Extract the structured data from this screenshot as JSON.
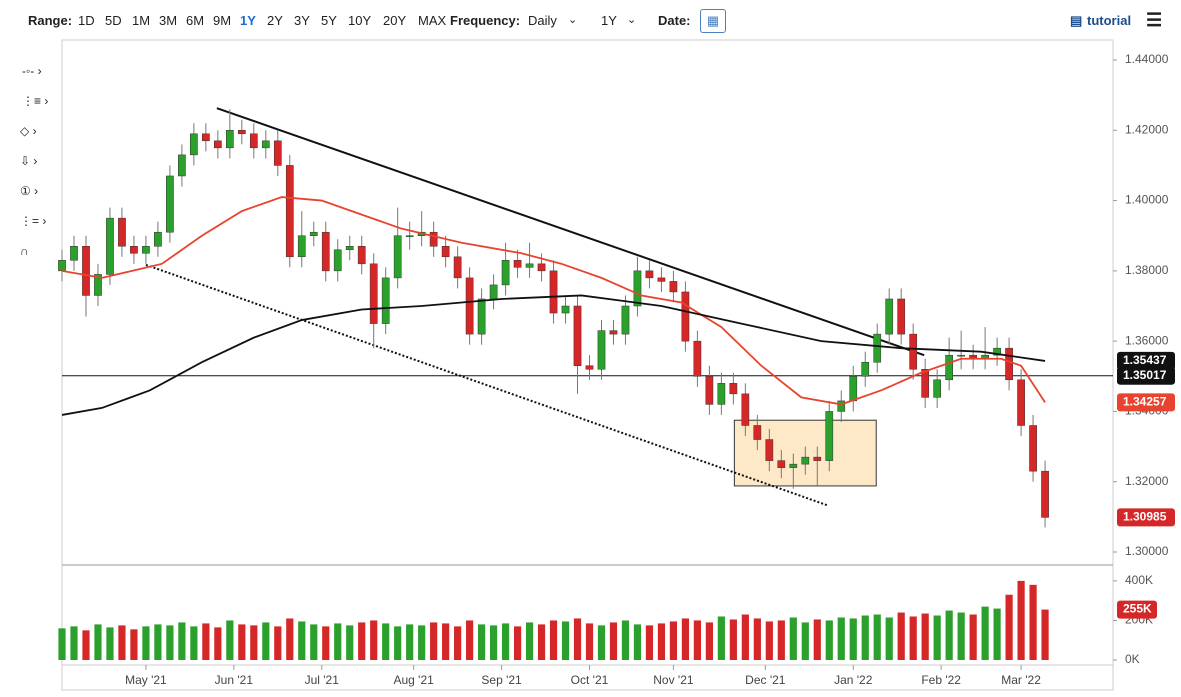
{
  "toolbar": {
    "range_label": "Range:",
    "ranges": [
      "1D",
      "5D",
      "1M",
      "3M",
      "6M",
      "9M",
      "1Y",
      "2Y",
      "3Y",
      "5Y",
      "10Y",
      "20Y",
      "MAX"
    ],
    "active_range": 6,
    "frequency_label": "Frequency:",
    "frequency": "Daily",
    "period": "1Y",
    "date_label": "Date:",
    "tutorial": "tutorial"
  },
  "chart_data": {
    "type": "candlestick",
    "xlim": [
      0,
      263
    ],
    "xticks": [
      {
        "value": 21,
        "label": "May '21"
      },
      {
        "value": 43,
        "label": "Jun '21"
      },
      {
        "value": 65,
        "label": "Jul '21"
      },
      {
        "value": 88,
        "label": "Aug '21"
      },
      {
        "value": 110,
        "label": "Sep '21"
      },
      {
        "value": 132,
        "label": "Oct '21"
      },
      {
        "value": 153,
        "label": "Nov '21"
      },
      {
        "value": 176,
        "label": "Dec '21"
      },
      {
        "value": 198,
        "label": "Jan '22"
      },
      {
        "value": 220,
        "label": "Feb '22"
      },
      {
        "value": 240,
        "label": "Mar '22"
      }
    ],
    "ylim": [
      1.3,
      1.44
    ],
    "yticks": [
      {
        "value": 1.3,
        "label": "1.30000"
      },
      {
        "value": 1.32,
        "label": "1.32000"
      },
      {
        "value": 1.34,
        "label": "1.34000"
      },
      {
        "value": 1.36,
        "label": "1.36000"
      },
      {
        "value": 1.38,
        "label": "1.38000"
      },
      {
        "value": 1.4,
        "label": "1.40000"
      },
      {
        "value": 1.42,
        "label": "1.42000"
      },
      {
        "value": 1.44,
        "label": "1.44000"
      }
    ],
    "up_color": "#2ca02c",
    "down_color": "#d62728",
    "x": [
      0,
      3,
      6,
      9,
      12,
      15,
      18,
      21,
      24,
      27,
      30,
      33,
      36,
      39,
      42,
      45,
      48,
      51,
      54,
      57,
      60,
      63,
      66,
      69,
      72,
      75,
      78,
      81,
      84,
      87,
      90,
      93,
      96,
      99,
      102,
      105,
      108,
      111,
      114,
      117,
      120,
      123,
      126,
      129,
      132,
      135,
      138,
      141,
      144,
      147,
      150,
      153,
      156,
      159,
      162,
      165,
      168,
      171,
      174,
      177,
      180,
      183,
      186,
      189,
      192,
      195,
      198,
      201,
      204,
      207,
      210,
      213,
      216,
      219,
      222,
      225,
      228,
      231,
      234,
      237,
      240,
      243,
      246
    ],
    "open": [
      1.38,
      1.383,
      1.387,
      1.373,
      1.379,
      1.395,
      1.387,
      1.385,
      1.387,
      1.391,
      1.407,
      1.413,
      1.419,
      1.417,
      1.415,
      1.42,
      1.419,
      1.415,
      1.417,
      1.41,
      1.384,
      1.39,
      1.391,
      1.38,
      1.386,
      1.387,
      1.382,
      1.365,
      1.378,
      1.39,
      1.39,
      1.391,
      1.387,
      1.384,
      1.378,
      1.362,
      1.372,
      1.376,
      1.383,
      1.381,
      1.382,
      1.38,
      1.368,
      1.37,
      1.353,
      1.352,
      1.363,
      1.362,
      1.37,
      1.38,
      1.378,
      1.377,
      1.374,
      1.36,
      1.35,
      1.342,
      1.348,
      1.345,
      1.336,
      1.332,
      1.326,
      1.324,
      1.325,
      1.327,
      1.326,
      1.34,
      1.343,
      1.35,
      1.354,
      1.362,
      1.372,
      1.362,
      1.352,
      1.344,
      1.349,
      1.356,
      1.356,
      1.355,
      1.356,
      1.358,
      1.349,
      1.336,
      1.323
    ],
    "high": [
      1.386,
      1.39,
      1.39,
      1.382,
      1.398,
      1.398,
      1.39,
      1.39,
      1.394,
      1.41,
      1.416,
      1.422,
      1.422,
      1.42,
      1.426,
      1.423,
      1.422,
      1.42,
      1.42,
      1.413,
      1.397,
      1.394,
      1.394,
      1.389,
      1.39,
      1.39,
      1.385,
      1.381,
      1.398,
      1.394,
      1.397,
      1.394,
      1.39,
      1.387,
      1.381,
      1.375,
      1.379,
      1.388,
      1.386,
      1.388,
      1.385,
      1.383,
      1.373,
      1.373,
      1.356,
      1.366,
      1.366,
      1.373,
      1.384,
      1.383,
      1.381,
      1.38,
      1.377,
      1.363,
      1.353,
      1.351,
      1.351,
      1.348,
      1.339,
      1.335,
      1.329,
      1.328,
      1.33,
      1.33,
      1.343,
      1.346,
      1.353,
      1.357,
      1.365,
      1.375,
      1.375,
      1.365,
      1.355,
      1.352,
      1.361,
      1.363,
      1.359,
      1.364,
      1.361,
      1.361,
      1.352,
      1.339,
      1.326
    ],
    "low": [
      1.377,
      1.38,
      1.367,
      1.37,
      1.376,
      1.384,
      1.382,
      1.382,
      1.384,
      1.388,
      1.404,
      1.41,
      1.414,
      1.412,
      1.412,
      1.416,
      1.412,
      1.412,
      1.407,
      1.381,
      1.381,
      1.387,
      1.377,
      1.377,
      1.383,
      1.379,
      1.358,
      1.362,
      1.375,
      1.386,
      1.387,
      1.384,
      1.381,
      1.375,
      1.359,
      1.359,
      1.369,
      1.373,
      1.378,
      1.378,
      1.377,
      1.365,
      1.365,
      1.345,
      1.349,
      1.349,
      1.359,
      1.359,
      1.367,
      1.375,
      1.374,
      1.371,
      1.357,
      1.347,
      1.339,
      1.339,
      1.342,
      1.333,
      1.329,
      1.323,
      1.321,
      1.318,
      1.322,
      1.319,
      1.323,
      1.337,
      1.34,
      1.347,
      1.351,
      1.359,
      1.359,
      1.349,
      1.341,
      1.341,
      1.346,
      1.352,
      1.352,
      1.352,
      1.353,
      1.346,
      1.333,
      1.32,
      1.307
    ],
    "close": [
      1.383,
      1.387,
      1.373,
      1.379,
      1.395,
      1.387,
      1.385,
      1.387,
      1.391,
      1.407,
      1.413,
      1.419,
      1.417,
      1.415,
      1.42,
      1.419,
      1.415,
      1.417,
      1.41,
      1.384,
      1.39,
      1.391,
      1.38,
      1.386,
      1.387,
      1.382,
      1.365,
      1.378,
      1.39,
      1.39,
      1.391,
      1.387,
      1.384,
      1.378,
      1.362,
      1.372,
      1.376,
      1.383,
      1.381,
      1.382,
      1.38,
      1.368,
      1.37,
      1.353,
      1.352,
      1.363,
      1.362,
      1.37,
      1.38,
      1.378,
      1.377,
      1.374,
      1.36,
      1.35,
      1.342,
      1.348,
      1.345,
      1.336,
      1.332,
      1.326,
      1.324,
      1.325,
      1.327,
      1.326,
      1.34,
      1.343,
      1.35,
      1.354,
      1.362,
      1.372,
      1.362,
      1.352,
      1.344,
      1.349,
      1.356,
      1.356,
      1.355,
      1.356,
      1.358,
      1.349,
      1.336,
      1.323,
      1.30985
    ],
    "ma": [
      {
        "color": "#e8432e",
        "x": [
          0,
          10,
          25,
          35,
          45,
          55,
          65,
          75,
          85,
          100,
          115,
          125,
          135,
          145,
          155,
          165,
          175,
          185,
          195,
          205,
          215,
          225,
          235,
          240,
          246
        ],
        "values": [
          1.38,
          1.378,
          1.382,
          1.39,
          1.397,
          1.401,
          1.4,
          1.396,
          1.392,
          1.388,
          1.385,
          1.382,
          1.378,
          1.373,
          1.371,
          1.364,
          1.353,
          1.344,
          1.342,
          1.346,
          1.351,
          1.355,
          1.355,
          1.353,
          1.34257
        ]
      },
      {
        "color": "#111111",
        "x": [
          0,
          10,
          22,
          35,
          48,
          60,
          75,
          90,
          110,
          130,
          150,
          170,
          190,
          210,
          230,
          246
        ],
        "values": [
          1.339,
          1.341,
          1.346,
          1.354,
          1.361,
          1.366,
          1.369,
          1.37,
          1.372,
          1.373,
          1.37,
          1.365,
          1.36,
          1.358,
          1.357,
          1.35437
        ]
      }
    ],
    "hline": 1.35017,
    "trendlines": [
      {
        "x": [
          38.75,
          215.75
        ],
        "values": [
          1.4263,
          1.356
        ],
        "dashed": false
      },
      {
        "x": [
          21,
          191.5
        ],
        "values": [
          1.3817,
          1.3133
        ],
        "dashed": true
      }
    ],
    "box": {
      "x": [
        168.25,
        203.75
      ],
      "values": [
        1.3375,
        1.3188
      ]
    },
    "volume": {
      "ylim": [
        0,
        450
      ],
      "yticks": [
        {
          "value": 0,
          "label": "0K"
        },
        {
          "value": 200,
          "label": "200K"
        },
        {
          "value": 400,
          "label": "400K"
        }
      ],
      "last_label": "255K",
      "values": [
        160,
        170,
        150,
        180,
        165,
        175,
        155,
        170,
        180,
        175,
        190,
        170,
        185,
        165,
        200,
        180,
        175,
        190,
        170,
        210,
        195,
        180,
        170,
        185,
        175,
        190,
        200,
        185,
        170,
        180,
        175,
        190,
        185,
        170,
        200,
        180,
        175,
        185,
        170,
        190,
        180,
        200,
        195,
        210,
        185,
        175,
        190,
        200,
        180,
        175,
        185,
        195,
        210,
        200,
        190,
        220,
        205,
        230,
        210,
        195,
        200,
        215,
        190,
        205,
        200,
        215,
        210,
        225,
        230,
        215,
        240,
        220,
        235,
        225,
        250,
        240,
        230,
        270,
        260,
        330,
        400,
        380,
        255
      ]
    }
  }
}
